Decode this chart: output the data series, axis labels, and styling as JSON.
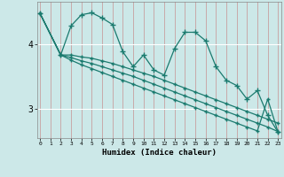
{
  "xlabel": "Humidex (Indice chaleur)",
  "x_ticks": [
    0,
    1,
    2,
    3,
    4,
    5,
    6,
    7,
    8,
    9,
    10,
    11,
    12,
    13,
    14,
    15,
    16,
    17,
    18,
    19,
    20,
    21,
    22,
    23
  ],
  "y_ticks": [
    3,
    4
  ],
  "ylim": [
    2.55,
    4.65
  ],
  "xlim": [
    -0.3,
    23.3
  ],
  "background_color": "#cce8e8",
  "line_color": "#1a7a6e",
  "grid_color": "#b8d8d8",
  "series": {
    "line1_x": [
      0,
      2,
      3,
      4,
      5,
      6,
      7,
      8,
      9,
      10,
      11,
      12,
      13,
      14,
      15,
      16,
      17,
      18,
      19,
      20,
      21,
      22,
      23
    ],
    "line1_y": [
      4.47,
      3.83,
      3.83,
      3.8,
      3.78,
      3.74,
      3.7,
      3.65,
      3.6,
      3.55,
      3.5,
      3.44,
      3.38,
      3.32,
      3.26,
      3.2,
      3.14,
      3.08,
      3.02,
      2.96,
      2.9,
      2.84,
      2.78
    ],
    "line2_x": [
      0,
      2,
      3,
      4,
      5,
      6,
      7,
      8,
      9,
      10,
      11,
      12,
      13,
      14,
      15,
      16,
      17,
      18,
      19,
      20,
      21,
      22,
      23
    ],
    "line2_y": [
      4.47,
      3.83,
      3.79,
      3.74,
      3.7,
      3.65,
      3.6,
      3.55,
      3.5,
      3.44,
      3.38,
      3.32,
      3.26,
      3.2,
      3.14,
      3.08,
      3.02,
      2.96,
      2.9,
      2.84,
      2.78,
      2.72,
      2.65
    ],
    "line3_x": [
      0,
      2,
      3,
      4,
      5,
      6,
      7,
      8,
      9,
      10,
      11,
      12,
      13,
      14,
      15,
      16,
      17,
      18,
      19,
      20,
      21,
      22,
      23
    ],
    "line3_y": [
      4.47,
      3.83,
      4.28,
      4.45,
      4.48,
      4.4,
      4.3,
      3.88,
      3.65,
      3.83,
      3.6,
      3.52,
      3.93,
      4.18,
      4.18,
      4.05,
      3.65,
      3.44,
      3.36,
      3.15,
      3.28,
      2.9,
      2.64
    ],
    "line4_x": [
      0,
      2,
      3,
      4,
      5,
      6,
      7,
      8,
      9,
      10,
      11,
      12,
      13,
      14,
      15,
      16,
      17,
      18,
      19,
      20,
      21,
      22,
      23
    ],
    "line4_y": [
      4.47,
      3.83,
      3.75,
      3.68,
      3.62,
      3.56,
      3.5,
      3.44,
      3.38,
      3.32,
      3.26,
      3.2,
      3.14,
      3.08,
      3.02,
      2.96,
      2.9,
      2.84,
      2.78,
      2.72,
      2.66,
      3.15,
      2.64
    ]
  }
}
